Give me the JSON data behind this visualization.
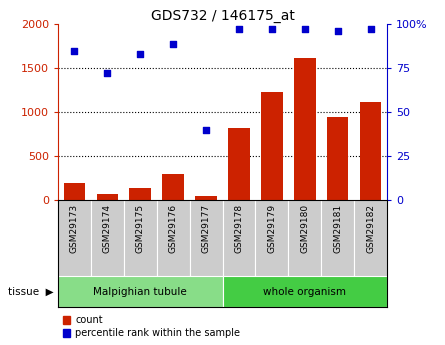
{
  "title": "GDS732 / 146175_at",
  "samples": [
    "GSM29173",
    "GSM29174",
    "GSM29175",
    "GSM29176",
    "GSM29177",
    "GSM29178",
    "GSM29179",
    "GSM29180",
    "GSM29181",
    "GSM29182"
  ],
  "counts": [
    190,
    70,
    140,
    300,
    45,
    820,
    1230,
    1620,
    950,
    1120
  ],
  "percentiles": [
    85,
    72,
    83,
    89,
    40,
    97,
    97,
    97,
    96,
    97
  ],
  "tissue_groups": [
    {
      "label": "Malpighian tubule",
      "start": 0,
      "end": 5,
      "color": "#88dd88"
    },
    {
      "label": "whole organism",
      "start": 5,
      "end": 10,
      "color": "#44cc44"
    }
  ],
  "left_ylim": [
    0,
    2000
  ],
  "right_ylim": [
    0,
    100
  ],
  "left_yticks": [
    0,
    500,
    1000,
    1500,
    2000
  ],
  "right_yticks": [
    0,
    25,
    50,
    75,
    100
  ],
  "left_yticklabels": [
    "0",
    "500",
    "1000",
    "1500",
    "2000"
  ],
  "right_yticklabels": [
    "0",
    "25",
    "50",
    "75",
    "100%"
  ],
  "bar_color": "#cc2200",
  "dot_color": "#0000cc",
  "grid_color": "#000000",
  "plot_bg": "#ffffff",
  "sample_box_bg": "#cccccc",
  "tissue_label": "tissue",
  "legend_count": "count",
  "legend_pct": "percentile rank within the sample"
}
